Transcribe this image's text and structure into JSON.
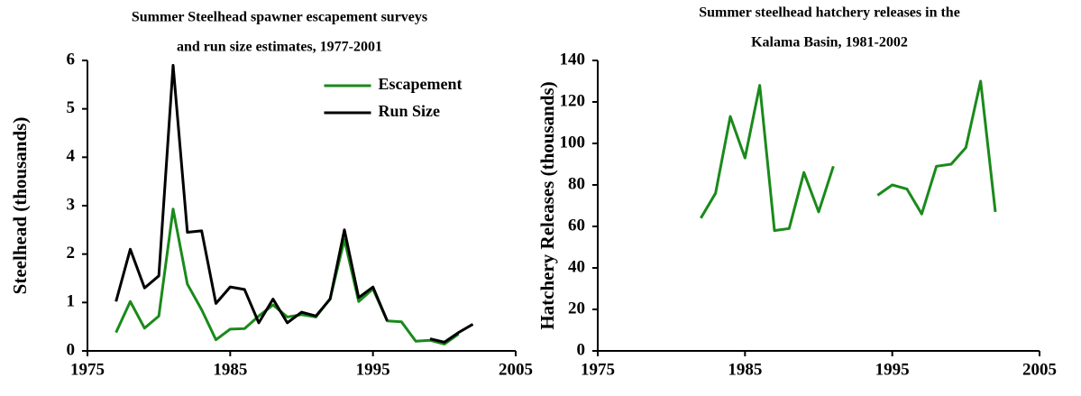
{
  "chart_data": [
    {
      "type": "line",
      "title": [
        "Summer Steelhead spawner escapement surveys",
        "and run size estimates, 1977-2001"
      ],
      "ylabel": "Steelhead (thousands)",
      "x": [
        1977,
        1978,
        1979,
        1980,
        1981,
        1982,
        1983,
        1984,
        1985,
        1986,
        1987,
        1988,
        1989,
        1990,
        1991,
        1992,
        1993,
        1994,
        1995,
        1996,
        1997,
        1998,
        1999,
        2000,
        2001,
        2002
      ],
      "series": [
        {
          "name": "Escapement",
          "color": "#1a8a1a",
          "values": [
            0.38,
            1.02,
            0.47,
            0.72,
            2.93,
            1.38,
            0.85,
            0.23,
            0.45,
            0.46,
            0.72,
            0.95,
            0.7,
            0.75,
            0.7,
            1.08,
            2.3,
            1.02,
            1.28,
            0.62,
            0.6,
            0.2,
            0.22,
            0.14,
            0.35,
            null
          ]
        },
        {
          "name": "Run Size",
          "color": "#000000",
          "values": [
            1.02,
            2.1,
            1.3,
            1.55,
            5.9,
            2.45,
            2.48,
            0.98,
            1.32,
            1.27,
            0.58,
            1.07,
            0.58,
            0.8,
            0.72,
            1.07,
            2.5,
            1.1,
            1.32,
            0.62,
            null,
            null,
            0.25,
            0.18,
            0.38,
            0.55
          ]
        }
      ],
      "xlim": [
        1975,
        2005
      ],
      "xticks": [
        1975,
        1985,
        1995,
        2005
      ],
      "ylim": [
        0,
        6
      ],
      "yticks": [
        0,
        1,
        2,
        3,
        4,
        5,
        6
      ],
      "legend": "upper center"
    },
    {
      "type": "line",
      "title": [
        "Summer steelhead hatchery releases in the",
        "Kalama Basin, 1981-2002"
      ],
      "ylabel": "Hatchery Releases (thousands)",
      "x": [
        1982,
        1983,
        1984,
        1985,
        1986,
        1987,
        1988,
        1989,
        1990,
        1991,
        1992,
        1993,
        1994,
        1995,
        1996,
        1997,
        1998,
        1999,
        2000,
        2001,
        2002
      ],
      "series": [
        {
          "color": "#1a8a1a",
          "values": [
            64,
            76,
            113,
            93,
            128,
            58,
            59,
            86,
            67,
            89,
            null,
            null,
            75,
            80,
            78,
            66,
            89,
            90,
            98,
            130,
            67
          ]
        }
      ],
      "xlim": [
        1975,
        2005
      ],
      "xticks": [
        1975,
        1985,
        1995,
        2005
      ],
      "ylim": [
        0,
        140
      ],
      "yticks": [
        0,
        20,
        40,
        60,
        80,
        100,
        120,
        140
      ]
    }
  ]
}
